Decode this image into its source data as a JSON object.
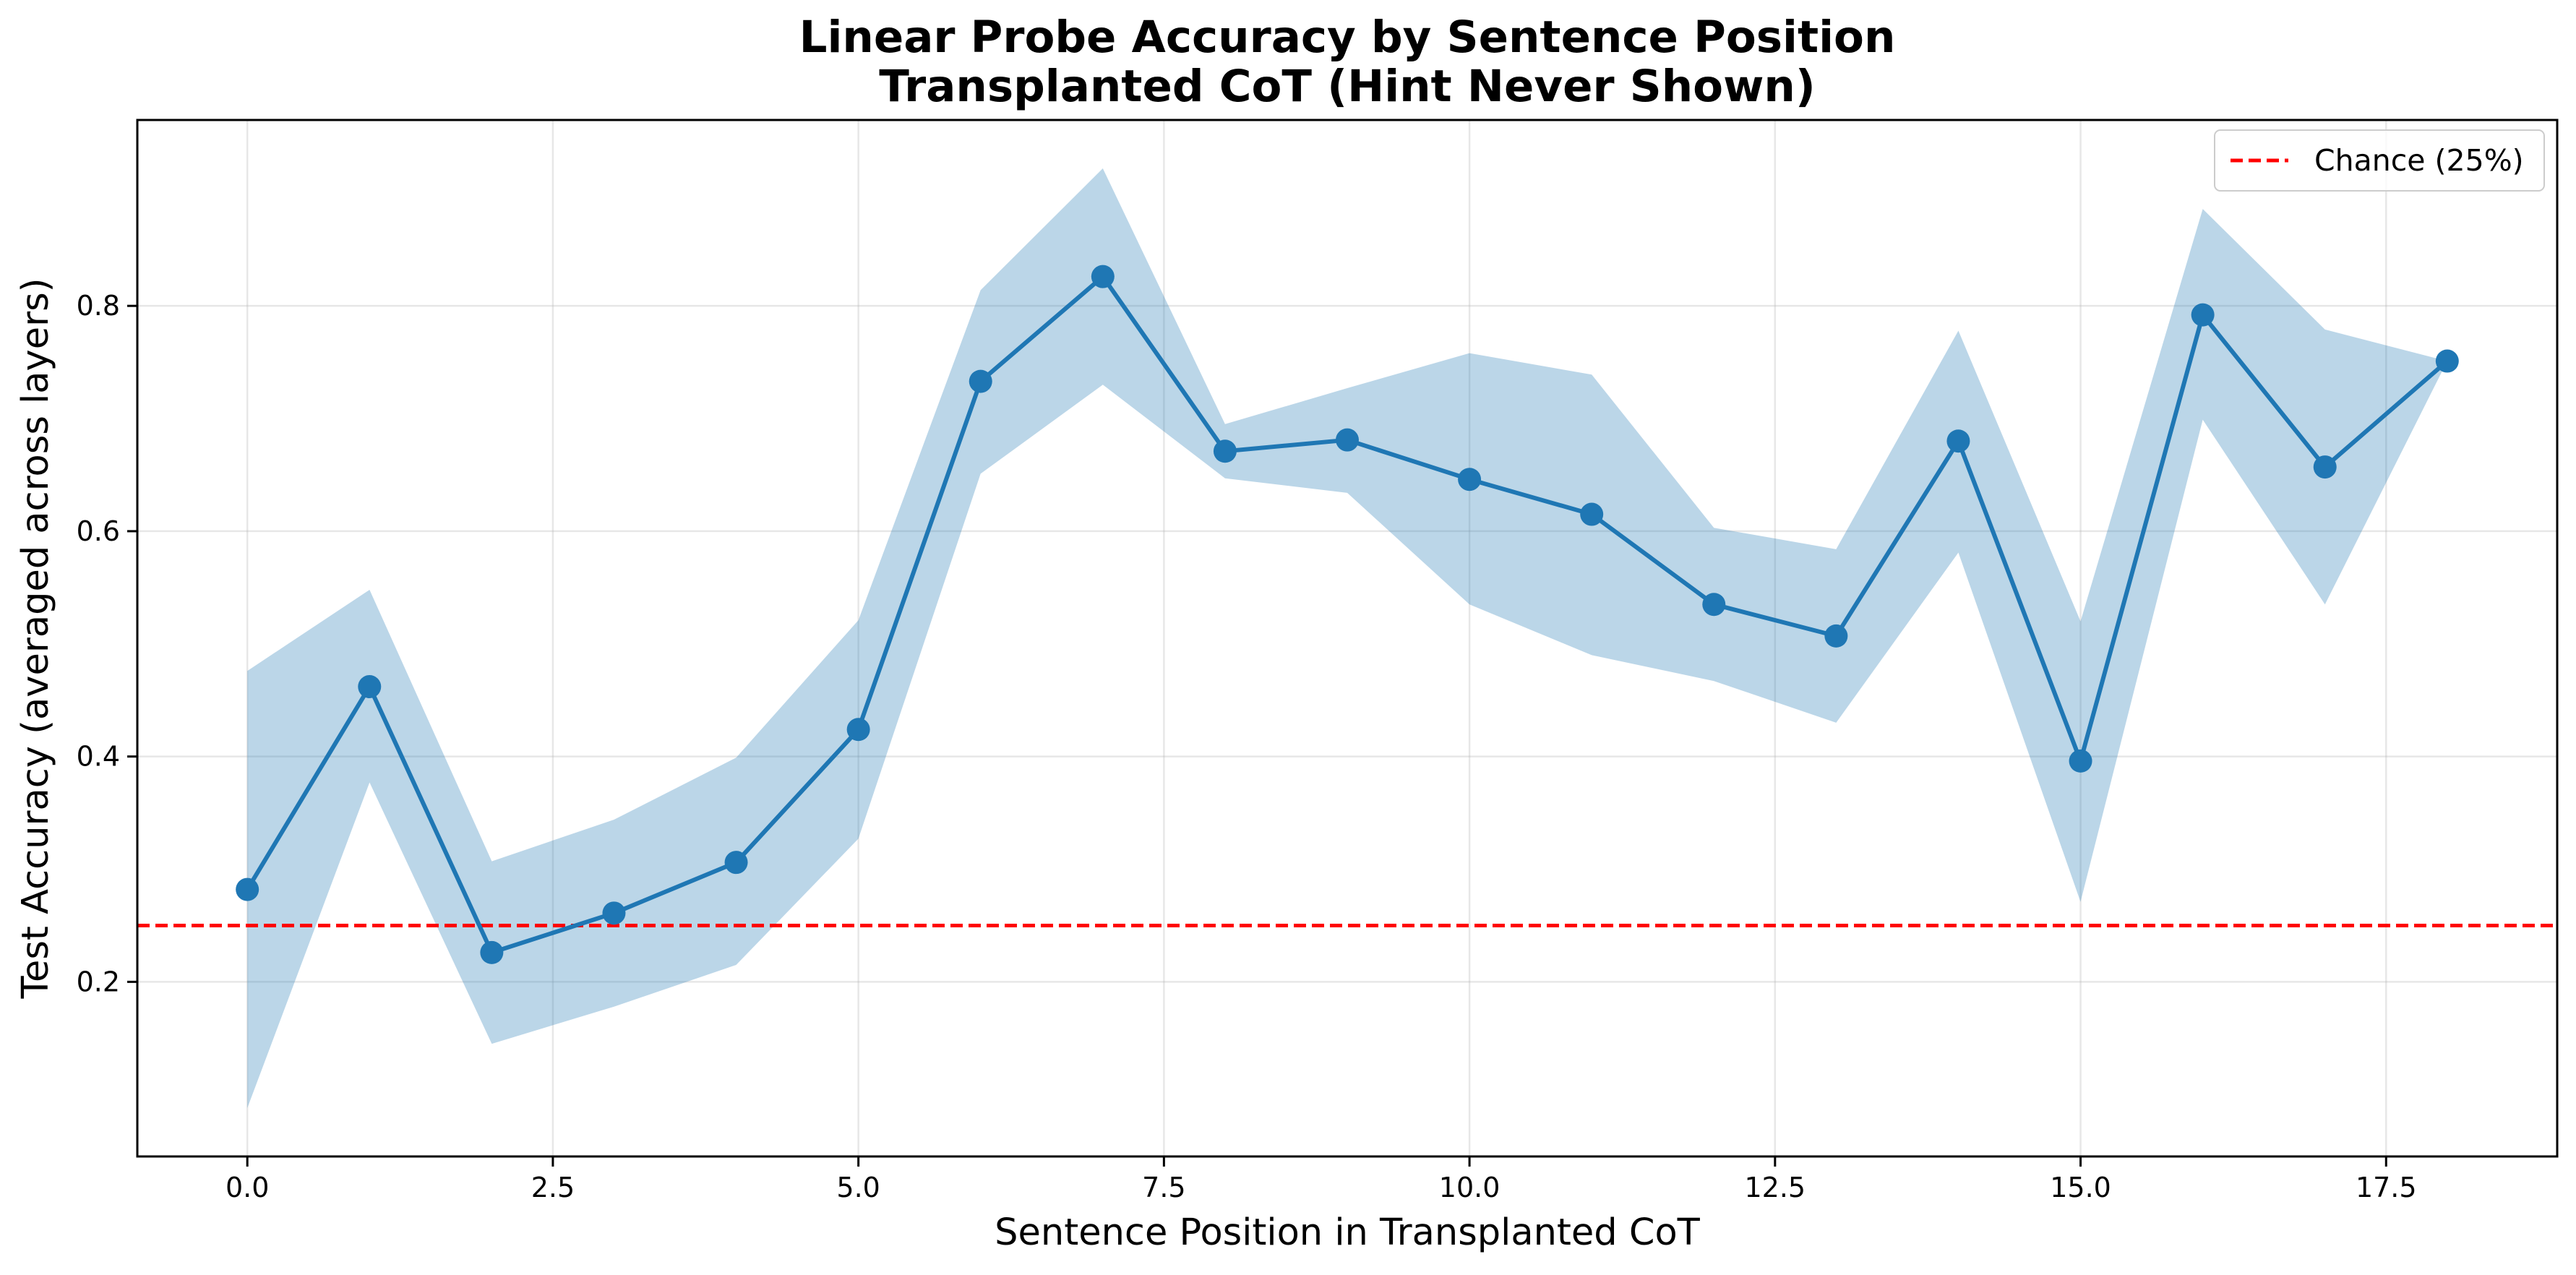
{
  "chart_data": {
    "type": "line",
    "title": "Linear Probe Accuracy by Sentence Position",
    "subtitle": "Transplanted CoT (Hint Never Shown)",
    "xlabel": "Sentence Position in Transplanted CoT",
    "ylabel": "Test Accuracy (averaged across layers)",
    "xlim": [
      -0.9,
      18.9
    ],
    "ylim": [
      0.045,
      0.965
    ],
    "xticks": [
      0.0,
      2.5,
      5.0,
      7.5,
      10.0,
      12.5,
      15.0,
      17.5
    ],
    "xtick_labels": [
      "0.0",
      "2.5",
      "5.0",
      "7.5",
      "10.0",
      "12.5",
      "15.0",
      "17.5"
    ],
    "yticks": [
      0.2,
      0.4,
      0.6,
      0.8
    ],
    "ytick_labels": [
      "0.2",
      "0.4",
      "0.6",
      "0.8"
    ],
    "grid": true,
    "legend_position": "top-right",
    "series": [
      {
        "x": [
          0,
          1,
          2,
          3,
          4,
          5,
          6,
          7,
          8,
          9,
          10,
          11,
          12,
          13,
          14,
          15,
          16,
          17,
          18
        ],
        "values": [
          0.282,
          0.462,
          0.226,
          0.261,
          0.306,
          0.424,
          0.733,
          0.826,
          0.671,
          0.681,
          0.646,
          0.615,
          0.535,
          0.507,
          0.68,
          0.396,
          0.792,
          0.657,
          0.751
        ],
        "lower": [
          0.088,
          0.377,
          0.145,
          0.178,
          0.215,
          0.327,
          0.651,
          0.73,
          0.647,
          0.634,
          0.535,
          0.49,
          0.467,
          0.43,
          0.581,
          0.271,
          0.699,
          0.535,
          0.751
        ],
        "upper": [
          0.476,
          0.548,
          0.307,
          0.344,
          0.399,
          0.521,
          0.814,
          0.922,
          0.695,
          0.727,
          0.758,
          0.739,
          0.603,
          0.584,
          0.778,
          0.52,
          0.886,
          0.779,
          0.751
        ],
        "color": "#1f77b4",
        "band_color": "#1f77b4"
      }
    ],
    "reference_line": {
      "name": "Chance (25%)",
      "y": 0.25,
      "color": "#ff0000",
      "style": "dashed"
    }
  }
}
